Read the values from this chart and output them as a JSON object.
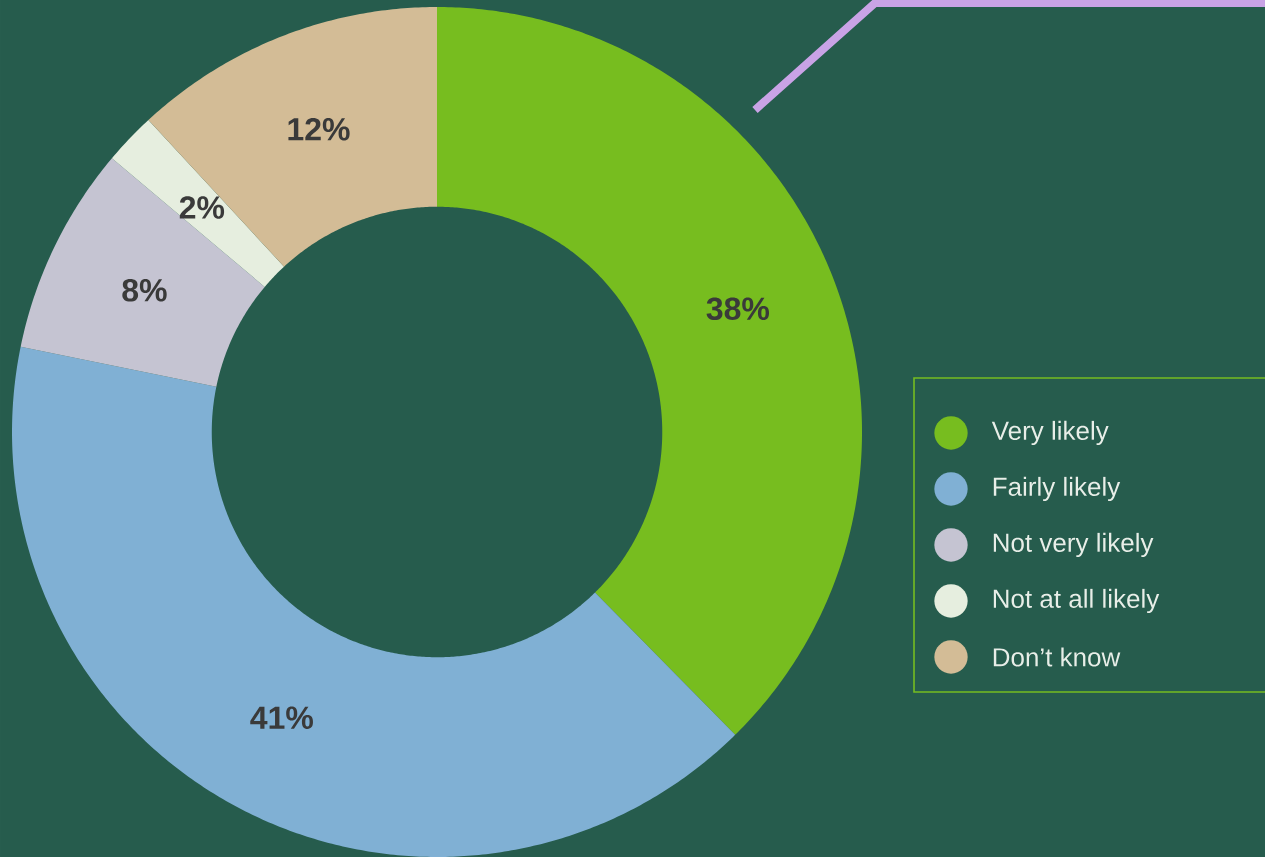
{
  "chart_data": {
    "type": "donut",
    "categories": [
      "Very likely",
      "Fairly likely",
      "Not very likely",
      "Not at all likely",
      "Don’t know"
    ],
    "values": [
      38,
      41,
      8,
      2,
      12
    ],
    "colors": [
      "#77bd1f",
      "#80b0d4",
      "#c5c4d2",
      "#e6eedf",
      "#d3bc96"
    ],
    "value_labels": [
      "38%",
      "41%",
      "8%",
      "2%",
      "12%"
    ],
    "legend": "right"
  }
}
